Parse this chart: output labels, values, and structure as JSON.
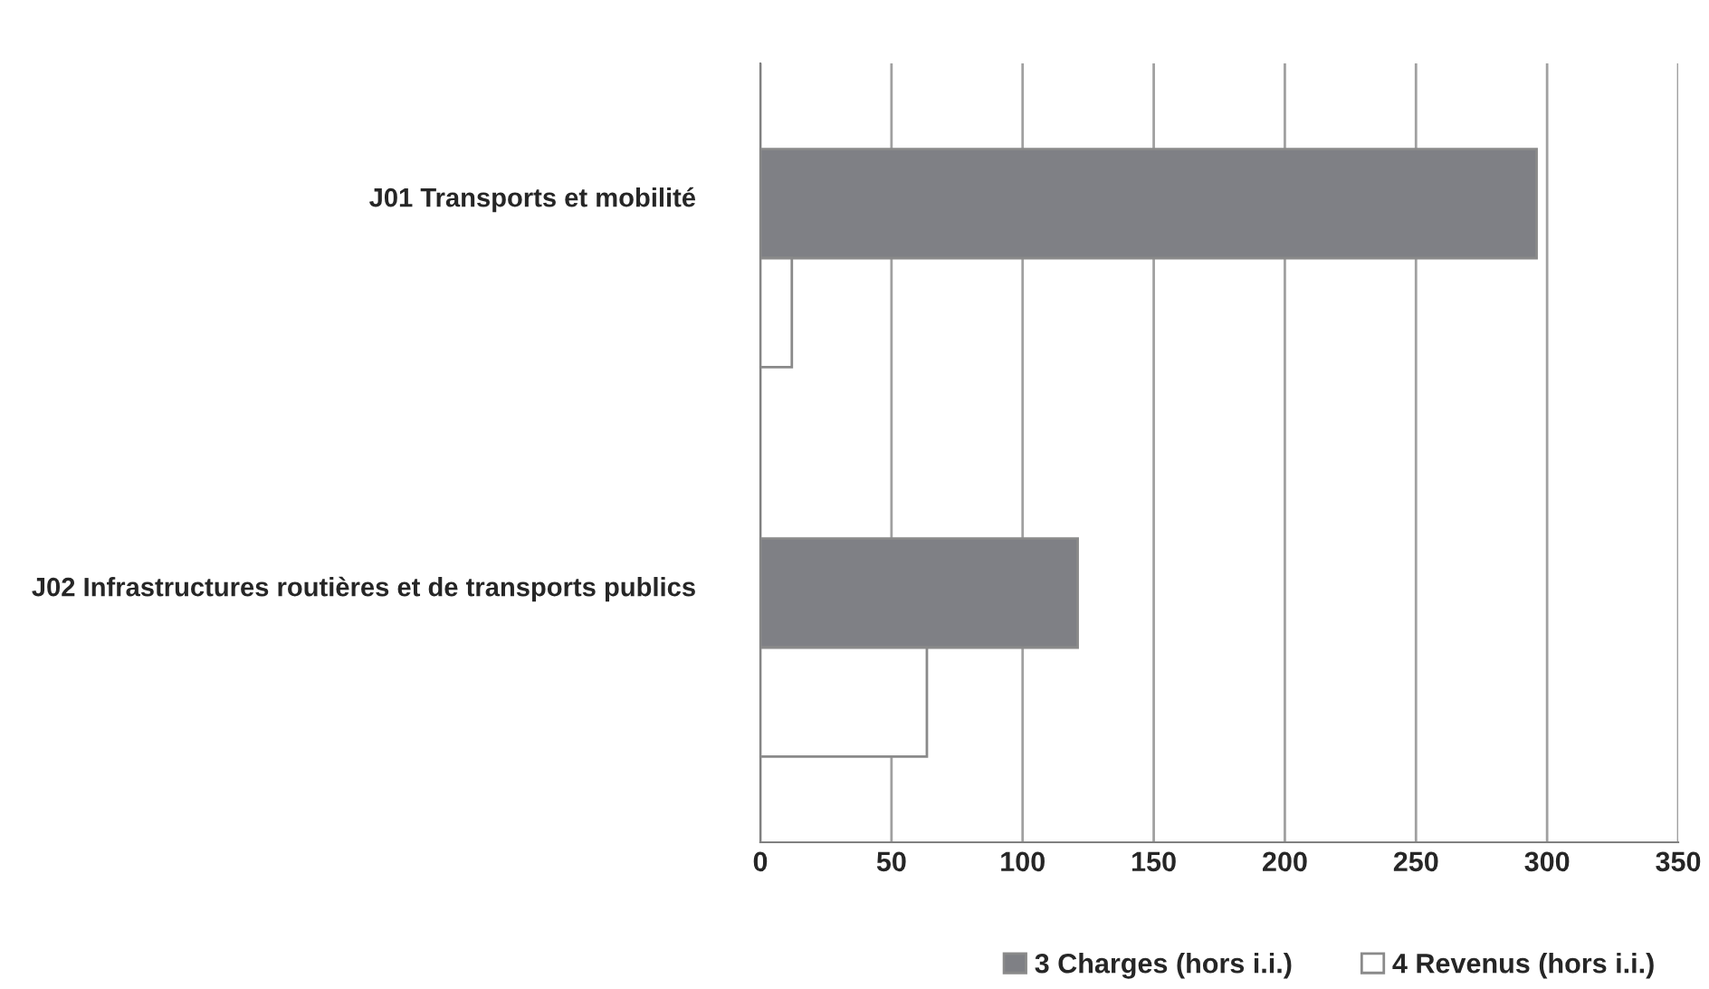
{
  "chart_data": {
    "type": "bar",
    "orientation": "horizontal",
    "categories": [
      "J01 Transports et mobilité",
      "J02 Infrastructures routières et de transports publics"
    ],
    "series": [
      {
        "name": "3 Charges (hors i.i.)",
        "color": "#7f8085",
        "values": [
          296,
          121
        ]
      },
      {
        "name": "4 Revenus (hors i.i.)",
        "color": "#ffffff",
        "values": [
          12,
          63.5
        ]
      }
    ],
    "xlim": [
      0,
      350
    ],
    "xticks": [
      0,
      50,
      100,
      150,
      200,
      250,
      300,
      350
    ],
    "grid": "x",
    "legend": "bottom"
  }
}
